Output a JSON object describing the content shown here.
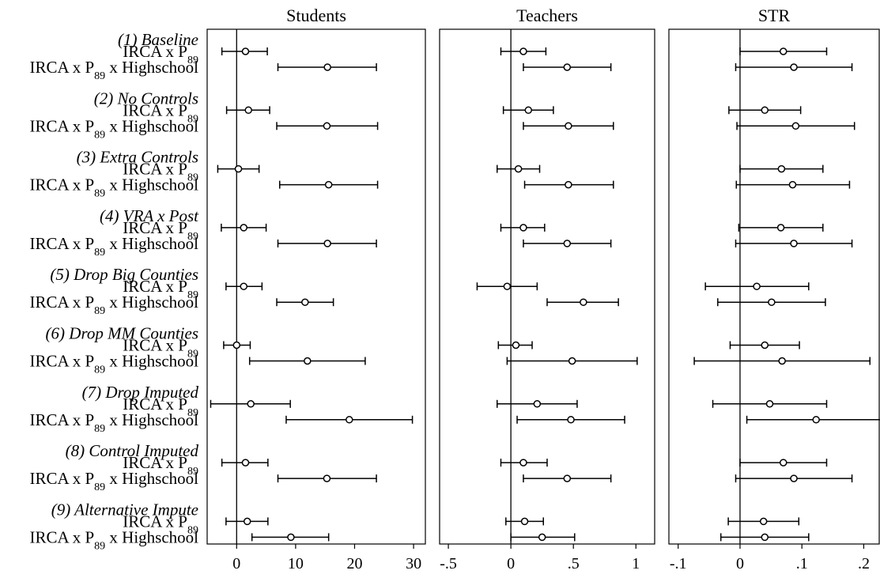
{
  "chart_data": {
    "type": "coefficient_plot",
    "row_labels": {
      "main": "IRCA x P",
      "sub": "89",
      "interaction_suffix": " x Highschool"
    },
    "specifications": [
      "(1) Baseline",
      "(2) No Controls",
      "(3) Extra Controls",
      "(4) VRA x Post",
      "(5) Drop Big Counties",
      "(6) Drop MM Counties",
      "(7) Drop Imputed",
      "(8) Control Imputed",
      "(9) Alternative Impute"
    ],
    "panels": [
      {
        "title": "Students",
        "xlim": [
          -5,
          32
        ],
        "ticks": [
          {
            "value": 0,
            "label": "0"
          },
          {
            "value": 10,
            "label": "10"
          },
          {
            "value": 20,
            "label": "20"
          },
          {
            "value": 30,
            "label": "30"
          }
        ],
        "estimates": [
          {
            "est": 1.5,
            "lo": -2.5,
            "hi": 5.2,
            "est_hs": 15.4,
            "lo_hs": 7.0,
            "hi_hs": 23.7
          },
          {
            "est": 2.0,
            "lo": -1.7,
            "hi": 5.6,
            "est_hs": 15.3,
            "lo_hs": 6.8,
            "hi_hs": 23.9
          },
          {
            "est": 0.3,
            "lo": -3.2,
            "hi": 3.8,
            "est_hs": 15.6,
            "lo_hs": 7.3,
            "hi_hs": 23.9
          },
          {
            "est": 1.2,
            "lo": -2.6,
            "hi": 5.0,
            "est_hs": 15.4,
            "lo_hs": 7.0,
            "hi_hs": 23.7
          },
          {
            "est": 1.2,
            "lo": -1.8,
            "hi": 4.3,
            "est_hs": 11.6,
            "lo_hs": 6.8,
            "hi_hs": 16.4
          },
          {
            "est": 0.0,
            "lo": -2.2,
            "hi": 2.3,
            "est_hs": 12.0,
            "lo_hs": 2.2,
            "hi_hs": 21.8
          },
          {
            "est": 2.4,
            "lo": -4.4,
            "hi": 9.1,
            "est_hs": 19.1,
            "lo_hs": 8.4,
            "hi_hs": 29.8
          },
          {
            "est": 1.5,
            "lo": -2.5,
            "hi": 5.3,
            "est_hs": 15.3,
            "lo_hs": 7.0,
            "hi_hs": 23.7
          },
          {
            "est": 1.8,
            "lo": -1.8,
            "hi": 5.3,
            "est_hs": 9.2,
            "lo_hs": 2.6,
            "hi_hs": 15.6
          }
        ]
      },
      {
        "title": "Teachers",
        "xlim": [
          -0.57,
          1.15
        ],
        "ticks": [
          {
            "value": -0.5,
            "label": "-.5"
          },
          {
            "value": 0,
            "label": "0"
          },
          {
            "value": 0.5,
            "label": ".5"
          },
          {
            "value": 1,
            "label": "1"
          }
        ],
        "estimates": [
          {
            "est": 0.1,
            "lo": -0.08,
            "hi": 0.28,
            "est_hs": 0.45,
            "lo_hs": 0.1,
            "hi_hs": 0.8
          },
          {
            "est": 0.14,
            "lo": -0.06,
            "hi": 0.34,
            "est_hs": 0.46,
            "lo_hs": 0.1,
            "hi_hs": 0.82
          },
          {
            "est": 0.06,
            "lo": -0.11,
            "hi": 0.23,
            "est_hs": 0.46,
            "lo_hs": 0.11,
            "hi_hs": 0.82
          },
          {
            "est": 0.1,
            "lo": -0.08,
            "hi": 0.27,
            "est_hs": 0.45,
            "lo_hs": 0.1,
            "hi_hs": 0.8
          },
          {
            "est": -0.03,
            "lo": -0.27,
            "hi": 0.21,
            "est_hs": 0.58,
            "lo_hs": 0.29,
            "hi_hs": 0.86
          },
          {
            "est": 0.04,
            "lo": -0.1,
            "hi": 0.17,
            "est_hs": 0.49,
            "lo_hs": -0.03,
            "hi_hs": 1.01
          },
          {
            "est": 0.21,
            "lo": -0.11,
            "hi": 0.53,
            "est_hs": 0.48,
            "lo_hs": 0.05,
            "hi_hs": 0.91
          },
          {
            "est": 0.1,
            "lo": -0.08,
            "hi": 0.29,
            "est_hs": 0.45,
            "lo_hs": 0.1,
            "hi_hs": 0.8
          },
          {
            "est": 0.11,
            "lo": -0.04,
            "hi": 0.26,
            "est_hs": 0.25,
            "lo_hs": 0.0,
            "hi_hs": 0.51
          }
        ]
      },
      {
        "title": "STR",
        "xlim": [
          -0.115,
          0.225
        ],
        "ticks": [
          {
            "value": -0.1,
            "label": "-.1"
          },
          {
            "value": 0,
            "label": "0"
          },
          {
            "value": 0.1,
            "label": ".1"
          },
          {
            "value": 0.2,
            "label": ".2"
          }
        ],
        "estimates": [
          {
            "est": 0.07,
            "lo": 0.0,
            "hi": 0.14,
            "est_hs": 0.087,
            "lo_hs": -0.007,
            "hi_hs": 0.181
          },
          {
            "est": 0.04,
            "lo": -0.018,
            "hi": 0.098,
            "est_hs": 0.09,
            "lo_hs": -0.005,
            "hi_hs": 0.185
          },
          {
            "est": 0.067,
            "lo": 0.0,
            "hi": 0.134,
            "est_hs": 0.085,
            "lo_hs": -0.006,
            "hi_hs": 0.177
          },
          {
            "est": 0.066,
            "lo": -0.002,
            "hi": 0.134,
            "est_hs": 0.087,
            "lo_hs": -0.007,
            "hi_hs": 0.181
          },
          {
            "est": 0.027,
            "lo": -0.056,
            "hi": 0.111,
            "est_hs": 0.051,
            "lo_hs": -0.036,
            "hi_hs": 0.138
          },
          {
            "est": 0.04,
            "lo": -0.016,
            "hi": 0.096,
            "est_hs": 0.068,
            "lo_hs": -0.074,
            "hi_hs": 0.21
          },
          {
            "est": 0.048,
            "lo": -0.044,
            "hi": 0.14,
            "est_hs": 0.123,
            "lo_hs": 0.011,
            "hi_hs": 0.234
          },
          {
            "est": 0.07,
            "lo": 0.0,
            "hi": 0.14,
            "est_hs": 0.087,
            "lo_hs": -0.007,
            "hi_hs": 0.181
          },
          {
            "est": 0.038,
            "lo": -0.019,
            "hi": 0.095,
            "est_hs": 0.04,
            "lo_hs": -0.031,
            "hi_hs": 0.111
          }
        ]
      }
    ]
  }
}
